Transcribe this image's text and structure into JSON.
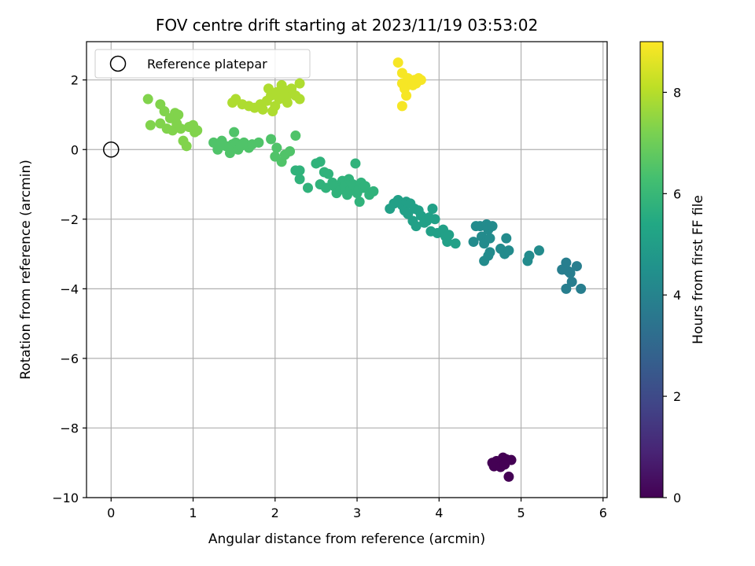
{
  "chart_data": {
    "type": "scatter",
    "title": "FOV centre drift starting at 2023/11/19 03:53:02",
    "xlabel": "Angular distance from reference (arcmin)",
    "ylabel": "Rotation from reference (arcmin)",
    "xlim": [
      -0.3,
      6.05
    ],
    "ylim": [
      -10,
      3.1
    ],
    "xticks": [
      0,
      1,
      2,
      3,
      4,
      5,
      6
    ],
    "yticks": [
      2,
      0,
      -2,
      -4,
      -6,
      -8,
      -10
    ],
    "grid": true,
    "legend": {
      "placement": "upper-left",
      "entries": [
        "Reference platepar"
      ]
    },
    "reference_point": {
      "x": 0,
      "y": 0
    },
    "colorbar": {
      "label": "Hours from first FF file",
      "range": [
        0,
        9
      ],
      "ticks": [
        0,
        2,
        4,
        6,
        8
      ],
      "colormap": "viridis"
    },
    "series": [
      {
        "hours": 0.0,
        "points": [
          [
            4.65,
            -9.0
          ],
          [
            4.7,
            -8.95
          ],
          [
            4.78,
            -8.85
          ],
          [
            4.82,
            -8.9
          ],
          [
            4.88,
            -8.92
          ],
          [
            4.67,
            -9.1
          ],
          [
            4.75,
            -9.12
          ],
          [
            4.8,
            -9.05
          ],
          [
            4.85,
            -9.4
          ]
        ]
      },
      {
        "hours": 3.8,
        "points": [
          [
            5.5,
            -3.45
          ],
          [
            5.55,
            -3.25
          ],
          [
            5.58,
            -3.5
          ],
          [
            5.62,
            -3.8
          ],
          [
            5.55,
            -4.0
          ],
          [
            5.68,
            -3.35
          ],
          [
            5.73,
            -4.0
          ],
          [
            5.6,
            -3.55
          ]
        ]
      },
      {
        "hours": 4.3,
        "points": [
          [
            4.42,
            -2.65
          ],
          [
            4.45,
            -2.2
          ],
          [
            4.5,
            -2.2
          ],
          [
            4.52,
            -2.5
          ],
          [
            4.55,
            -2.7
          ],
          [
            4.58,
            -2.15
          ],
          [
            4.6,
            -2.3
          ],
          [
            4.62,
            -2.55
          ],
          [
            4.65,
            -2.2
          ],
          [
            4.55,
            -3.2
          ],
          [
            4.6,
            -3.05
          ],
          [
            4.62,
            -2.95
          ],
          [
            4.75,
            -2.85
          ],
          [
            4.8,
            -3.0
          ],
          [
            4.85,
            -2.9
          ],
          [
            4.82,
            -2.55
          ],
          [
            5.08,
            -3.2
          ],
          [
            5.1,
            -3.05
          ],
          [
            5.22,
            -2.9
          ]
        ]
      },
      {
        "hours": 5.1,
        "points": [
          [
            3.4,
            -1.7
          ],
          [
            3.45,
            -1.55
          ],
          [
            3.5,
            -1.45
          ],
          [
            3.55,
            -1.6
          ],
          [
            3.58,
            -1.75
          ],
          [
            3.6,
            -1.5
          ],
          [
            3.62,
            -1.85
          ],
          [
            3.65,
            -1.55
          ],
          [
            3.68,
            -2.05
          ],
          [
            3.7,
            -1.7
          ],
          [
            3.72,
            -2.2
          ],
          [
            3.75,
            -1.75
          ],
          [
            3.78,
            -1.9
          ],
          [
            3.82,
            -2.1
          ],
          [
            3.85,
            -2.05
          ],
          [
            3.88,
            -1.95
          ],
          [
            3.9,
            -2.35
          ],
          [
            3.92,
            -1.7
          ],
          [
            3.95,
            -2.0
          ],
          [
            3.98,
            -2.4
          ],
          [
            4.05,
            -2.3
          ],
          [
            4.08,
            -2.5
          ],
          [
            4.1,
            -2.65
          ],
          [
            4.12,
            -2.45
          ],
          [
            4.2,
            -2.7
          ]
        ]
      },
      {
        "hours": 5.8,
        "points": [
          [
            2.3,
            -0.6
          ],
          [
            2.25,
            -0.6
          ],
          [
            2.3,
            -0.85
          ],
          [
            2.4,
            -1.1
          ],
          [
            2.5,
            -0.4
          ],
          [
            2.55,
            -0.35
          ],
          [
            2.55,
            -1.0
          ],
          [
            2.6,
            -0.65
          ],
          [
            2.62,
            -1.1
          ],
          [
            2.65,
            -0.7
          ],
          [
            2.7,
            -0.95
          ],
          [
            2.72,
            -1.05
          ],
          [
            2.75,
            -1.25
          ],
          [
            2.8,
            -1.15
          ],
          [
            2.82,
            -0.9
          ],
          [
            2.85,
            -1.05
          ],
          [
            2.88,
            -1.3
          ],
          [
            2.9,
            -0.85
          ],
          [
            2.92,
            -1.15
          ],
          [
            2.95,
            -1.0
          ],
          [
            2.98,
            -0.4
          ],
          [
            3.0,
            -1.25
          ],
          [
            3.02,
            -1.15
          ],
          [
            3.03,
            -1.5
          ],
          [
            3.05,
            -0.95
          ],
          [
            3.08,
            -1.1
          ],
          [
            3.1,
            -1.05
          ],
          [
            3.15,
            -1.3
          ],
          [
            3.2,
            -1.2
          ]
        ]
      },
      {
        "hours": 6.5,
        "points": [
          [
            1.25,
            0.2
          ],
          [
            1.3,
            0.0
          ],
          [
            1.35,
            0.25
          ],
          [
            1.4,
            0.1
          ],
          [
            1.45,
            -0.1
          ],
          [
            1.48,
            0.15
          ],
          [
            1.5,
            0.5
          ],
          [
            1.52,
            0.2
          ],
          [
            1.55,
            0.0
          ],
          [
            1.58,
            0.1
          ],
          [
            1.62,
            0.2
          ],
          [
            1.68,
            0.05
          ],
          [
            1.72,
            0.15
          ],
          [
            1.8,
            0.2
          ],
          [
            1.95,
            0.3
          ],
          [
            2.02,
            0.05
          ],
          [
            2.08,
            -0.35
          ],
          [
            2.12,
            -0.15
          ],
          [
            2.18,
            -0.05
          ],
          [
            2.25,
            0.4
          ],
          [
            2.0,
            -0.2
          ]
        ]
      },
      {
        "hours": 7.3,
        "points": [
          [
            0.45,
            1.45
          ],
          [
            0.48,
            0.7
          ],
          [
            0.6,
            0.75
          ],
          [
            0.6,
            1.3
          ],
          [
            0.65,
            1.1
          ],
          [
            0.68,
            0.6
          ],
          [
            0.72,
            0.9
          ],
          [
            0.75,
            0.55
          ],
          [
            0.78,
            1.05
          ],
          [
            0.8,
            0.75
          ],
          [
            0.82,
            1.0
          ],
          [
            0.85,
            0.6
          ],
          [
            0.88,
            0.25
          ],
          [
            0.92,
            0.1
          ],
          [
            0.95,
            0.65
          ],
          [
            1.0,
            0.7
          ],
          [
            1.02,
            0.5
          ],
          [
            1.05,
            0.55
          ]
        ]
      },
      {
        "hours": 7.9,
        "points": [
          [
            1.48,
            1.35
          ],
          [
            1.52,
            1.45
          ],
          [
            1.6,
            1.3
          ],
          [
            1.68,
            1.25
          ],
          [
            1.75,
            1.2
          ],
          [
            1.82,
            1.3
          ],
          [
            1.85,
            1.15
          ],
          [
            1.9,
            1.4
          ],
          [
            1.92,
            1.75
          ],
          [
            1.95,
            1.55
          ],
          [
            1.97,
            1.1
          ],
          [
            2.0,
            1.25
          ],
          [
            2.02,
            1.65
          ],
          [
            2.05,
            1.45
          ],
          [
            2.08,
            1.85
          ],
          [
            2.1,
            1.5
          ],
          [
            2.12,
            1.7
          ],
          [
            2.15,
            1.35
          ],
          [
            2.18,
            1.6
          ],
          [
            2.2,
            1.75
          ],
          [
            2.25,
            1.55
          ],
          [
            2.3,
            1.45
          ],
          [
            2.3,
            1.9
          ]
        ]
      },
      {
        "hours": 8.9,
        "points": [
          [
            3.5,
            2.5
          ],
          [
            3.55,
            2.2
          ],
          [
            3.55,
            1.9
          ],
          [
            3.58,
            1.75
          ],
          [
            3.6,
            1.55
          ],
          [
            3.55,
            1.25
          ],
          [
            3.62,
            2.05
          ],
          [
            3.65,
            1.95
          ],
          [
            3.68,
            1.85
          ],
          [
            3.7,
            2.0
          ],
          [
            3.72,
            1.9
          ],
          [
            3.75,
            2.05
          ],
          [
            3.78,
            2.0
          ]
        ]
      }
    ]
  }
}
